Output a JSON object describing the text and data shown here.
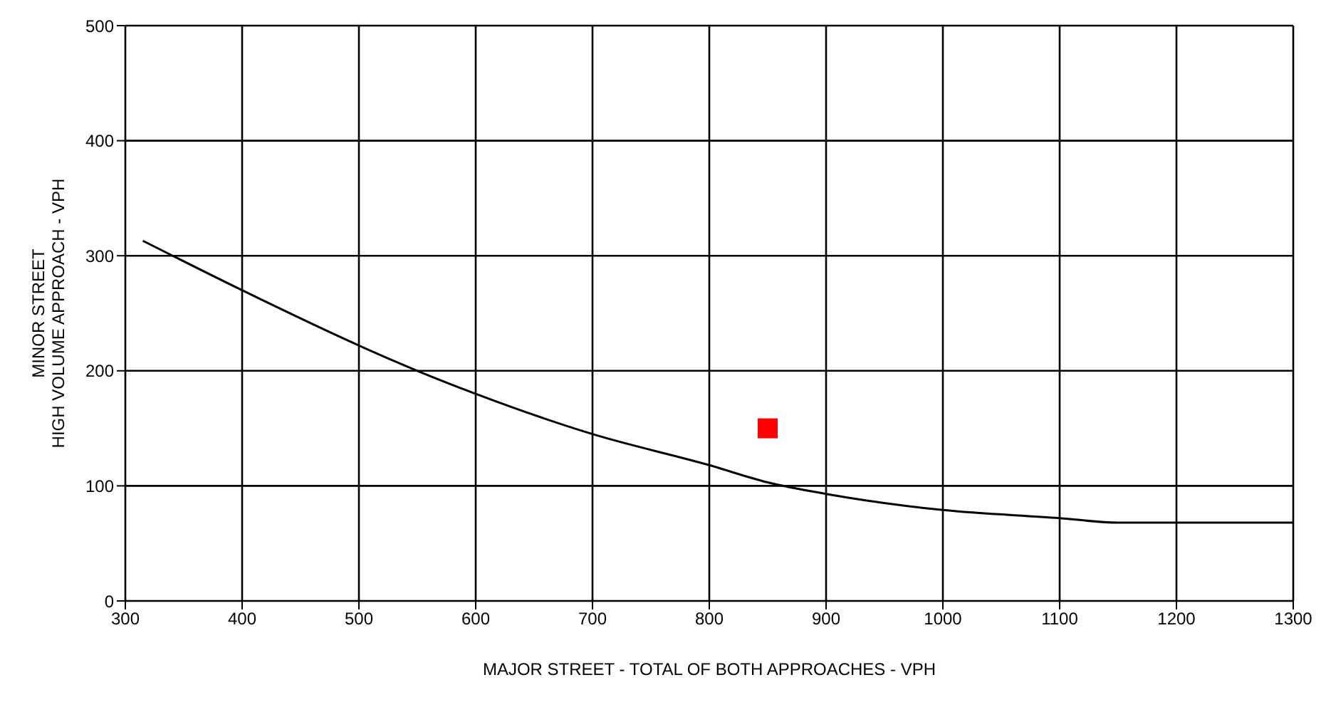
{
  "chart_data": {
    "type": "line",
    "xlabel": "MAJOR STREET - TOTAL OF BOTH APPROACHES - VPH",
    "ylabel": "MINOR STREET\nHIGH VOLUME APPROACH - VPH",
    "xlim": [
      300,
      1300
    ],
    "xticks": [
      300,
      400,
      500,
      600,
      700,
      800,
      900,
      1000,
      1100,
      1200,
      1300
    ],
    "ylim": [
      0,
      500
    ],
    "yticks": [
      0,
      100,
      200,
      300,
      400,
      500
    ],
    "grid": true,
    "series": [
      {
        "color": "#000000",
        "marker": "none",
        "x": [
          315,
          400,
          500,
          550,
          600,
          700,
          800,
          850,
          900,
          1000,
          1100,
          1150,
          1200,
          1300
        ],
        "values": [
          313,
          270,
          222,
          200,
          180,
          145,
          118,
          103,
          93,
          79,
          72,
          68,
          68,
          68
        ]
      },
      {
        "type": "scatter",
        "color": "#ff0000",
        "marker": "square",
        "x": [
          850
        ],
        "values": [
          150
        ]
      }
    ]
  }
}
